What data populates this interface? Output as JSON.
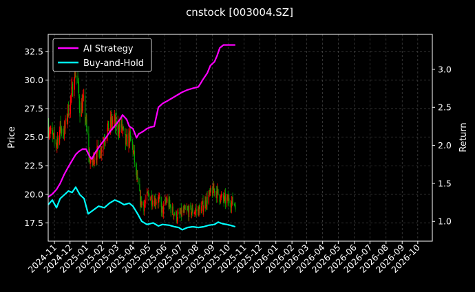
{
  "chart_data": {
    "type": "line",
    "title": "cnstock [003004.SZ]",
    "ylabel_left": "Price",
    "ylabel_right": "Return",
    "xlabel": "",
    "grid": true,
    "legend_position": "top-left",
    "y_left_ticks": [
      "17.5",
      "20.0",
      "22.5",
      "25.0",
      "27.5",
      "30.0",
      "32.5"
    ],
    "y_right_ticks": [
      "1.0",
      "1.5",
      "2.0",
      "2.5",
      "3.0"
    ],
    "x_ticks": [
      "2024-11",
      "2024-12",
      "2025-01",
      "2025-02",
      "2025-03",
      "2025-04",
      "2025-05",
      "2025-06",
      "2025-07",
      "2025-08",
      "2025-09",
      "2025-10",
      "2025-11",
      "2025-12",
      "2026-01",
      "2026-02",
      "2026-03",
      "2026-04",
      "2026-05",
      "2026-06",
      "2026-07",
      "2026-08",
      "2026-09",
      "2026-10"
    ],
    "x_range": [
      "2024-10-20",
      "2026-10-29"
    ],
    "ylim_left": [
      15.9,
      34.0
    ],
    "ylim_right": [
      0.74,
      3.46
    ],
    "series": [
      {
        "name": "AI Strategy",
        "axis": "right",
        "color": "#ff00ff",
        "points": [
          [
            "2024-10-20",
            1.32
          ],
          [
            "2024-10-28",
            1.36
          ],
          [
            "2024-11-05",
            1.42
          ],
          [
            "2024-11-12",
            1.5
          ],
          [
            "2024-11-20",
            1.62
          ],
          [
            "2024-11-28",
            1.72
          ],
          [
            "2024-12-05",
            1.8
          ],
          [
            "2024-12-12",
            1.88
          ],
          [
            "2024-12-18",
            1.92
          ],
          [
            "2024-12-25",
            1.95
          ],
          [
            "2025-01-01",
            1.95
          ],
          [
            "2025-01-08",
            1.85
          ],
          [
            "2025-01-12",
            1.82
          ],
          [
            "2025-01-18",
            1.9
          ],
          [
            "2025-01-28",
            2.0
          ],
          [
            "2025-02-08",
            2.1
          ],
          [
            "2025-02-18",
            2.2
          ],
          [
            "2025-02-28",
            2.28
          ],
          [
            "2025-03-08",
            2.35
          ],
          [
            "2025-03-12",
            2.4
          ],
          [
            "2025-03-20",
            2.34
          ],
          [
            "2025-03-25",
            2.25
          ],
          [
            "2025-04-01",
            2.22
          ],
          [
            "2025-04-08",
            2.1
          ],
          [
            "2025-04-12",
            2.15
          ],
          [
            "2025-04-20",
            2.18
          ],
          [
            "2025-04-28",
            2.22
          ],
          [
            "2025-05-05",
            2.24
          ],
          [
            "2025-05-12",
            2.25
          ],
          [
            "2025-05-20",
            2.5
          ],
          [
            "2025-05-28",
            2.55
          ],
          [
            "2025-06-05",
            2.58
          ],
          [
            "2025-06-15",
            2.62
          ],
          [
            "2025-06-25",
            2.66
          ],
          [
            "2025-07-05",
            2.7
          ],
          [
            "2025-07-15",
            2.73
          ],
          [
            "2025-07-25",
            2.75
          ],
          [
            "2025-08-05",
            2.77
          ],
          [
            "2025-08-15",
            2.88
          ],
          [
            "2025-08-22",
            2.95
          ],
          [
            "2025-08-28",
            3.05
          ],
          [
            "2025-09-05",
            3.1
          ],
          [
            "2025-09-10",
            3.18
          ],
          [
            "2025-09-15",
            3.28
          ],
          [
            "2025-09-22",
            3.32
          ],
          [
            "2025-10-01",
            3.32
          ],
          [
            "2025-10-15",
            3.32
          ]
        ]
      },
      {
        "name": "Buy-and-Hold",
        "axis": "right",
        "color": "#00ffff",
        "points": [
          [
            "2024-10-20",
            1.22
          ],
          [
            "2024-10-28",
            1.28
          ],
          [
            "2024-11-05",
            1.18
          ],
          [
            "2024-11-12",
            1.3
          ],
          [
            "2024-11-20",
            1.35
          ],
          [
            "2024-11-28",
            1.4
          ],
          [
            "2024-12-05",
            1.38
          ],
          [
            "2024-12-12",
            1.45
          ],
          [
            "2024-12-20",
            1.35
          ],
          [
            "2024-12-28",
            1.3
          ],
          [
            "2025-01-05",
            1.1
          ],
          [
            "2025-01-15",
            1.15
          ],
          [
            "2025-01-25",
            1.2
          ],
          [
            "2025-02-05",
            1.18
          ],
          [
            "2025-02-15",
            1.24
          ],
          [
            "2025-02-25",
            1.28
          ],
          [
            "2025-03-05",
            1.26
          ],
          [
            "2025-03-15",
            1.22
          ],
          [
            "2025-03-25",
            1.24
          ],
          [
            "2025-04-01",
            1.2
          ],
          [
            "2025-04-10",
            1.1
          ],
          [
            "2025-04-18",
            1.0
          ],
          [
            "2025-04-28",
            0.96
          ],
          [
            "2025-05-10",
            0.98
          ],
          [
            "2025-05-20",
            0.94
          ],
          [
            "2025-05-28",
            0.96
          ],
          [
            "2025-06-10",
            0.95
          ],
          [
            "2025-06-20",
            0.93
          ],
          [
            "2025-06-28",
            0.92
          ],
          [
            "2025-07-05",
            0.89
          ],
          [
            "2025-07-15",
            0.92
          ],
          [
            "2025-07-25",
            0.93
          ],
          [
            "2025-08-05",
            0.92
          ],
          [
            "2025-08-15",
            0.93
          ],
          [
            "2025-08-25",
            0.95
          ],
          [
            "2025-09-05",
            0.96
          ],
          [
            "2025-09-12",
            0.99
          ],
          [
            "2025-09-20",
            0.97
          ],
          [
            "2025-09-28",
            0.96
          ],
          [
            "2025-10-05",
            0.95
          ],
          [
            "2025-10-15",
            0.93
          ]
        ]
      },
      {
        "name": "Price (candlesticks)",
        "axis": "left",
        "up_color": "#ff0000",
        "down_color": "#00aa00",
        "points": [
          [
            "2024-10-20",
            26.0
          ],
          [
            "2024-10-28",
            25.0
          ],
          [
            "2024-11-05",
            24.5
          ],
          [
            "2024-11-12",
            25.8
          ],
          [
            "2024-11-20",
            25.5
          ],
          [
            "2024-11-28",
            27.5
          ],
          [
            "2024-12-05",
            29.0
          ],
          [
            "2024-12-10",
            31.0
          ],
          [
            "2024-12-15",
            30.0
          ],
          [
            "2024-12-20",
            27.5
          ],
          [
            "2024-12-28",
            28.0
          ],
          [
            "2025-01-05",
            24.0
          ],
          [
            "2025-01-10",
            22.5
          ],
          [
            "2025-01-18",
            23.5
          ],
          [
            "2025-01-28",
            23.8
          ],
          [
            "2025-02-05",
            25.0
          ],
          [
            "2025-02-15",
            26.0
          ],
          [
            "2025-02-22",
            26.5
          ],
          [
            "2025-03-01",
            25.8
          ],
          [
            "2025-03-10",
            26.0
          ],
          [
            "2025-03-18",
            24.5
          ],
          [
            "2025-03-25",
            25.0
          ],
          [
            "2025-04-01",
            24.0
          ],
          [
            "2025-04-08",
            21.5
          ],
          [
            "2025-04-15",
            19.5
          ],
          [
            "2025-04-22",
            19.0
          ],
          [
            "2025-05-01",
            20.0
          ],
          [
            "2025-05-10",
            19.5
          ],
          [
            "2025-05-20",
            19.5
          ],
          [
            "2025-05-28",
            18.5
          ],
          [
            "2025-06-05",
            19.5
          ],
          [
            "2025-06-15",
            18.6
          ],
          [
            "2025-06-25",
            18.0
          ],
          [
            "2025-07-05",
            18.4
          ],
          [
            "2025-07-15",
            18.5
          ],
          [
            "2025-07-25",
            18.5
          ],
          [
            "2025-08-05",
            18.6
          ],
          [
            "2025-08-15",
            19.0
          ],
          [
            "2025-08-25",
            19.8
          ],
          [
            "2025-09-05",
            20.5
          ],
          [
            "2025-09-12",
            20.0
          ],
          [
            "2025-09-20",
            19.5
          ],
          [
            "2025-09-28",
            19.5
          ],
          [
            "2025-10-05",
            19.4
          ],
          [
            "2025-10-15",
            19.2
          ]
        ]
      }
    ]
  }
}
